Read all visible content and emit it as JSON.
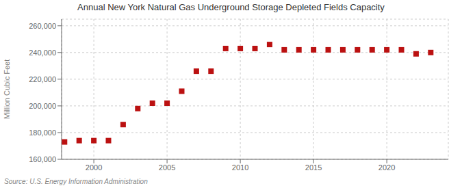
{
  "chart_data": {
    "type": "scatter",
    "title": "Annual New York Natural Gas Underground Storage Depleted Fields Capacity",
    "ylabel": "Million Cubic Feet",
    "source": "Source: U.S. Energy Information Administration",
    "color": "#bb1111",
    "marker": "square",
    "grid": true,
    "x": [
      1998,
      1999,
      2000,
      2001,
      2002,
      2003,
      2004,
      2005,
      2006,
      2007,
      2008,
      2009,
      2010,
      2011,
      2012,
      2013,
      2014,
      2015,
      2016,
      2017,
      2018,
      2019,
      2020,
      2021,
      2022,
      2023
    ],
    "values": [
      173000,
      174000,
      174000,
      174000,
      186000,
      198000,
      202000,
      202000,
      211000,
      226000,
      226000,
      243000,
      243000,
      243000,
      246000,
      242000,
      242000,
      242000,
      242000,
      242000,
      242000,
      242000,
      242000,
      242000,
      239000,
      240000
    ],
    "xlim": [
      1997.8,
      2024.2
    ],
    "xticks": [
      2000,
      2005,
      2010,
      2015,
      2020
    ],
    "ylim": [
      160000,
      265000
    ],
    "yticks": [
      {
        "value": 160000,
        "label": "160,000"
      },
      {
        "value": 180000,
        "label": "180,000"
      },
      {
        "value": 200000,
        "label": "200,000"
      },
      {
        "value": 220000,
        "label": "220,000"
      },
      {
        "value": 240000,
        "label": "240,000"
      },
      {
        "value": 260000,
        "label": "260,000"
      }
    ]
  }
}
